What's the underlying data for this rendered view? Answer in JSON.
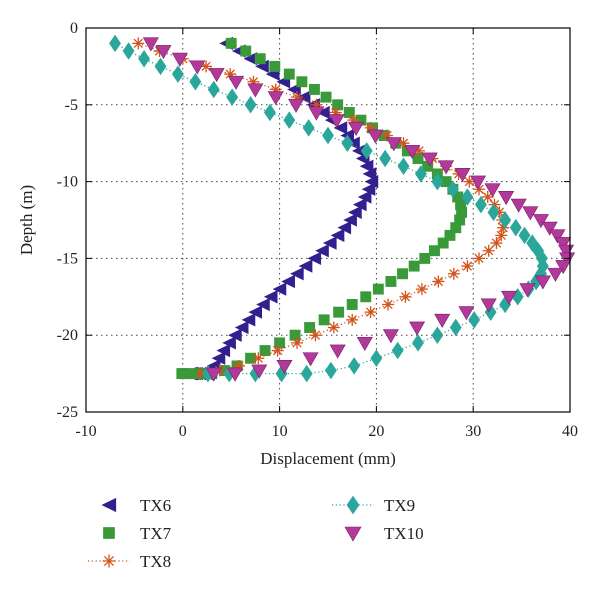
{
  "chart_data": {
    "type": "scatter",
    "xlabel": "Displacement (mm)",
    "ylabel": "Depth (m)",
    "xlim": [
      -10,
      40
    ],
    "ylim": [
      -25,
      0
    ],
    "xticks": [
      -10,
      0,
      10,
      20,
      30,
      40
    ],
    "yticks": [
      0,
      -5,
      -10,
      -15,
      -20,
      -25
    ],
    "grid": "dotted",
    "legend_position": "bottom",
    "series": [
      {
        "name": "TX6",
        "color": "#33208f",
        "marker": "triangle-left",
        "line": "none",
        "x": [
          4.5,
          5.8,
          7.0,
          8.2,
          9.3,
          10.4,
          11.5,
          12.5,
          13.5,
          14.5,
          15.4,
          16.3,
          17.0,
          17.6,
          18.2,
          18.6,
          19.0,
          19.3,
          19.5,
          19.2,
          18.8,
          18.3,
          17.8,
          17.3,
          16.7,
          16.0,
          15.2,
          14.4,
          13.6,
          12.7,
          11.8,
          10.9,
          10.0,
          9.1,
          8.3,
          7.5,
          6.8,
          6.1,
          5.4,
          4.8,
          4.2,
          3.7,
          3.2,
          2.8,
          2.4,
          2.0,
          1.7,
          1.4,
          1.2,
          1.0,
          0.9,
          0.8,
          0.7
        ],
        "y": [
          -1.0,
          -1.5,
          -2.0,
          -2.5,
          -3.0,
          -3.5,
          -4.0,
          -4.5,
          -5.0,
          -5.5,
          -6.0,
          -6.5,
          -7.0,
          -7.5,
          -8.0,
          -8.5,
          -9.0,
          -9.5,
          -10.0,
          -10.5,
          -11.0,
          -11.5,
          -12.0,
          -12.5,
          -13.0,
          -13.5,
          -14.0,
          -14.5,
          -15.0,
          -15.5,
          -16.0,
          -16.5,
          -17.0,
          -17.5,
          -18.0,
          -18.5,
          -19.0,
          -19.5,
          -20.0,
          -20.5,
          -21.0,
          -21.5,
          -22.0,
          -22.3,
          -22.5,
          -22.5,
          -22.5,
          -22.5,
          -22.5,
          -22.5,
          -22.5,
          -22.5,
          -22.5
        ]
      },
      {
        "name": "TX7",
        "color": "#3a9a3a",
        "marker": "square",
        "line": "none",
        "x": [
          5.0,
          6.5,
          8.0,
          9.5,
          11.0,
          12.3,
          13.6,
          14.8,
          16.0,
          17.2,
          18.4,
          19.6,
          20.8,
          22.0,
          23.2,
          24.3,
          25.3,
          26.3,
          27.2,
          27.9,
          28.4,
          28.7,
          28.8,
          28.6,
          28.2,
          27.6,
          26.9,
          26.0,
          25.0,
          23.9,
          22.7,
          21.5,
          20.2,
          18.9,
          17.5,
          16.1,
          14.6,
          13.1,
          11.6,
          10.0,
          8.5,
          7.0,
          5.6,
          4.3,
          3.0,
          1.8,
          0.8,
          0.2,
          -0.1
        ],
        "y": [
          -1.0,
          -1.5,
          -2.0,
          -2.5,
          -3.0,
          -3.5,
          -4.0,
          -4.5,
          -5.0,
          -5.5,
          -6.0,
          -6.5,
          -7.0,
          -7.5,
          -8.0,
          -8.5,
          -9.0,
          -9.5,
          -10.0,
          -10.5,
          -11.0,
          -11.5,
          -12.0,
          -12.5,
          -13.0,
          -13.5,
          -14.0,
          -14.5,
          -15.0,
          -15.5,
          -16.0,
          -16.5,
          -17.0,
          -17.5,
          -18.0,
          -18.5,
          -19.0,
          -19.5,
          -20.0,
          -20.5,
          -21.0,
          -21.5,
          -22.0,
          -22.3,
          -22.5,
          -22.5,
          -22.5,
          -22.5,
          -22.5
        ]
      },
      {
        "name": "TX8",
        "color": "#d2541c",
        "marker": "star",
        "line": "dotted",
        "x": [
          -4.6,
          -2.4,
          0.0,
          2.4,
          4.9,
          7.3,
          9.6,
          11.8,
          13.8,
          15.8,
          17.6,
          19.4,
          21.1,
          22.8,
          24.4,
          25.8,
          27.2,
          28.5,
          29.6,
          30.6,
          31.5,
          32.2,
          32.7,
          33.0,
          33.1,
          32.9,
          32.4,
          31.6,
          30.6,
          29.4,
          28.0,
          26.4,
          24.7,
          23.0,
          21.2,
          19.4,
          17.5,
          15.6,
          13.7,
          11.8,
          9.8,
          7.8,
          5.8,
          3.8,
          1.9
        ],
        "y": [
          -1.0,
          -1.5,
          -2.0,
          -2.5,
          -3.0,
          -3.5,
          -4.0,
          -4.5,
          -5.0,
          -5.5,
          -6.0,
          -6.5,
          -7.0,
          -7.5,
          -8.0,
          -8.5,
          -9.0,
          -9.5,
          -10.0,
          -10.5,
          -11.0,
          -11.5,
          -12.0,
          -12.5,
          -13.0,
          -13.5,
          -14.0,
          -14.5,
          -15.0,
          -15.5,
          -16.0,
          -16.5,
          -17.0,
          -17.5,
          -18.0,
          -18.5,
          -19.0,
          -19.5,
          -20.0,
          -20.5,
          -21.0,
          -21.5,
          -22.0,
          -22.3,
          -22.5
        ]
      },
      {
        "name": "TX9",
        "color": "#2aa79a",
        "marker": "diamond",
        "line": "dotted",
        "x": [
          -7.0,
          -5.6,
          -4.0,
          -2.3,
          -0.5,
          1.3,
          3.2,
          5.1,
          7.0,
          9.0,
          11.0,
          13.0,
          15.0,
          17.0,
          19.0,
          20.9,
          22.8,
          24.6,
          26.3,
          27.9,
          29.4,
          30.8,
          32.1,
          33.3,
          34.4,
          35.3,
          36.1,
          36.7,
          37.1,
          37.2,
          37.0,
          36.5,
          35.7,
          34.6,
          33.3,
          31.8,
          30.1,
          28.2,
          26.3,
          24.3,
          22.2,
          20.0,
          17.7,
          15.3,
          12.8,
          10.2,
          7.5,
          4.8,
          2.6
        ],
        "y": [
          -1.0,
          -1.5,
          -2.0,
          -2.5,
          -3.0,
          -3.5,
          -4.0,
          -4.5,
          -5.0,
          -5.5,
          -6.0,
          -6.5,
          -7.0,
          -7.5,
          -8.0,
          -8.5,
          -9.0,
          -9.5,
          -10.0,
          -10.5,
          -11.0,
          -11.5,
          -12.0,
          -12.5,
          -13.0,
          -13.5,
          -14.0,
          -14.5,
          -15.0,
          -15.5,
          -16.0,
          -16.5,
          -17.0,
          -17.5,
          -18.0,
          -18.5,
          -19.0,
          -19.5,
          -20.0,
          -20.5,
          -21.0,
          -21.5,
          -22.0,
          -22.3,
          -22.5,
          -22.5,
          -22.5,
          -22.5,
          -22.5
        ]
      },
      {
        "name": "TX10",
        "color": "#b2399a",
        "marker": "triangle-down",
        "line": "none",
        "x": [
          -3.3,
          -2.0,
          -0.3,
          1.5,
          3.5,
          5.5,
          7.5,
          9.6,
          11.7,
          13.8,
          15.9,
          17.9,
          19.9,
          21.8,
          23.7,
          25.5,
          27.2,
          28.9,
          30.5,
          32.0,
          33.4,
          34.7,
          35.9,
          37.0,
          37.9,
          38.7,
          39.3,
          39.6,
          39.7,
          39.3,
          38.5,
          37.2,
          35.6,
          33.7,
          31.6,
          29.3,
          26.8,
          24.2,
          21.5,
          18.8,
          16.0,
          13.2,
          10.5,
          7.9,
          5.4,
          3.2
        ],
        "y": [
          -1.0,
          -1.5,
          -2.0,
          -2.5,
          -3.0,
          -3.5,
          -4.0,
          -4.5,
          -5.0,
          -5.5,
          -6.0,
          -6.5,
          -7.0,
          -7.5,
          -8.0,
          -8.5,
          -9.0,
          -9.5,
          -10.0,
          -10.5,
          -11.0,
          -11.5,
          -12.0,
          -12.5,
          -13.0,
          -13.5,
          -14.0,
          -14.5,
          -15.0,
          -15.5,
          -16.0,
          -16.5,
          -17.0,
          -17.5,
          -18.0,
          -18.5,
          -19.0,
          -19.5,
          -20.0,
          -20.5,
          -21.0,
          -21.5,
          -22.0,
          -22.3,
          -22.5,
          -22.5
        ]
      }
    ]
  }
}
